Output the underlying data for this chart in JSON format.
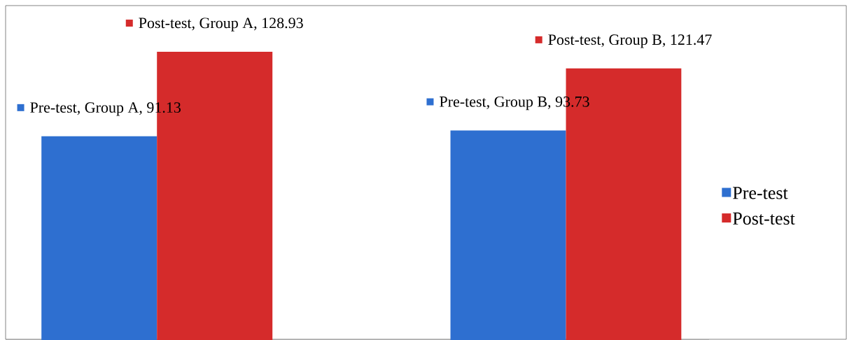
{
  "chart_data": {
    "type": "bar",
    "categories": [
      null,
      null
    ],
    "series": [
      {
        "name": "Pre-test",
        "color": "#2e6fd0",
        "values": [
          91.13,
          93.73
        ],
        "value_labels": [
          "Pre-test, Group A, 91.13",
          "Pre-test, Group B, 93.73"
        ]
      },
      {
        "name": "Post-test",
        "color": "#d52b2b",
        "values": [
          128.93,
          121.47
        ],
        "value_labels": [
          "Post-test, Group A, 128.93",
          "Post-test, Group B, 121.47"
        ]
      }
    ],
    "legend": "right"
  }
}
